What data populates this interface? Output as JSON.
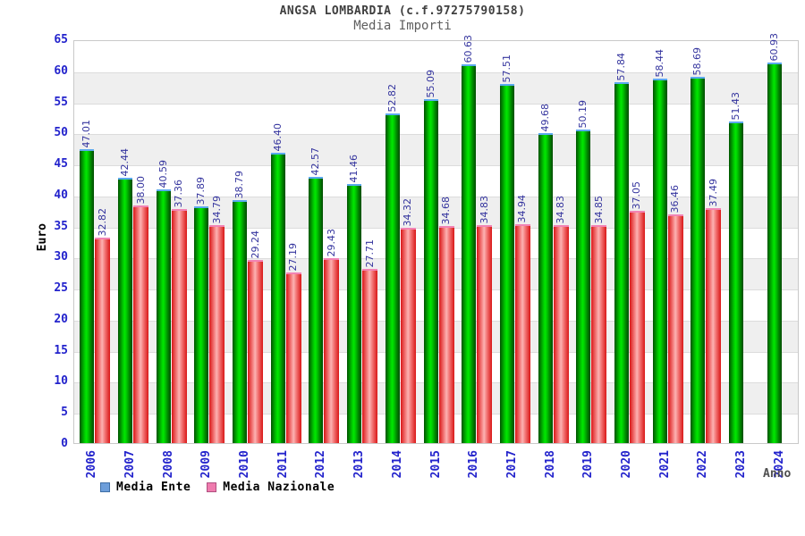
{
  "chart_data": {
    "type": "bar",
    "title": "ANGSA LOMBARDIA (c.f.97275790158)",
    "subtitle": "Media Importi",
    "ylabel": "Euro",
    "xlabel": "Anno",
    "ylim": [
      0,
      65
    ],
    "ytick_step": 5,
    "grid": true,
    "background_bands": "alternating white / light-gray every 5 units, gray on 5-10,15-20,25-30,35-40,45-50,55-60",
    "legend_position": "bottom-left",
    "categories": [
      "2006",
      "2007",
      "2008",
      "2009",
      "2010",
      "2011",
      "2012",
      "2013",
      "2014",
      "2015",
      "2016",
      "2017",
      "2018",
      "2019",
      "2020",
      "2021",
      "2022",
      "2023",
      "2024"
    ],
    "series": [
      {
        "name": "Media Ente",
        "values": [
          47.01,
          42.44,
          40.59,
          37.89,
          38.79,
          46.4,
          42.57,
          41.46,
          52.82,
          55.09,
          60.63,
          57.51,
          49.68,
          50.19,
          57.84,
          58.44,
          58.69,
          51.43,
          60.93
        ]
      },
      {
        "name": "Media Nazionale",
        "values": [
          32.82,
          38.0,
          37.36,
          34.79,
          29.24,
          27.19,
          29.43,
          27.71,
          34.32,
          34.68,
          34.83,
          34.94,
          34.83,
          34.85,
          37.05,
          36.46,
          37.49,
          null,
          null
        ]
      }
    ],
    "legend": [
      {
        "label": "Media Ente",
        "swatch_fill": "#6d9eda",
        "swatch_border": "#3f6fa6"
      },
      {
        "label": "Media Nazionale",
        "swatch_fill": "#ef7bae",
        "swatch_border": "#b05080"
      }
    ],
    "colors": {
      "tick_label": "#2323cc",
      "value_label": "#34349e",
      "band_gray": "#efefef",
      "gridline": "#dcdcdc",
      "plot_border": "#c9c9c9",
      "green_bar_cap": "#5ba9ee",
      "red_bar_cap": "#f283b4",
      "green_bar_core": "#00e800",
      "red_bar_core": "#fcb2b2",
      "title_color": "#3f3f3f",
      "subtitle_color": "#5f5f5f"
    }
  }
}
